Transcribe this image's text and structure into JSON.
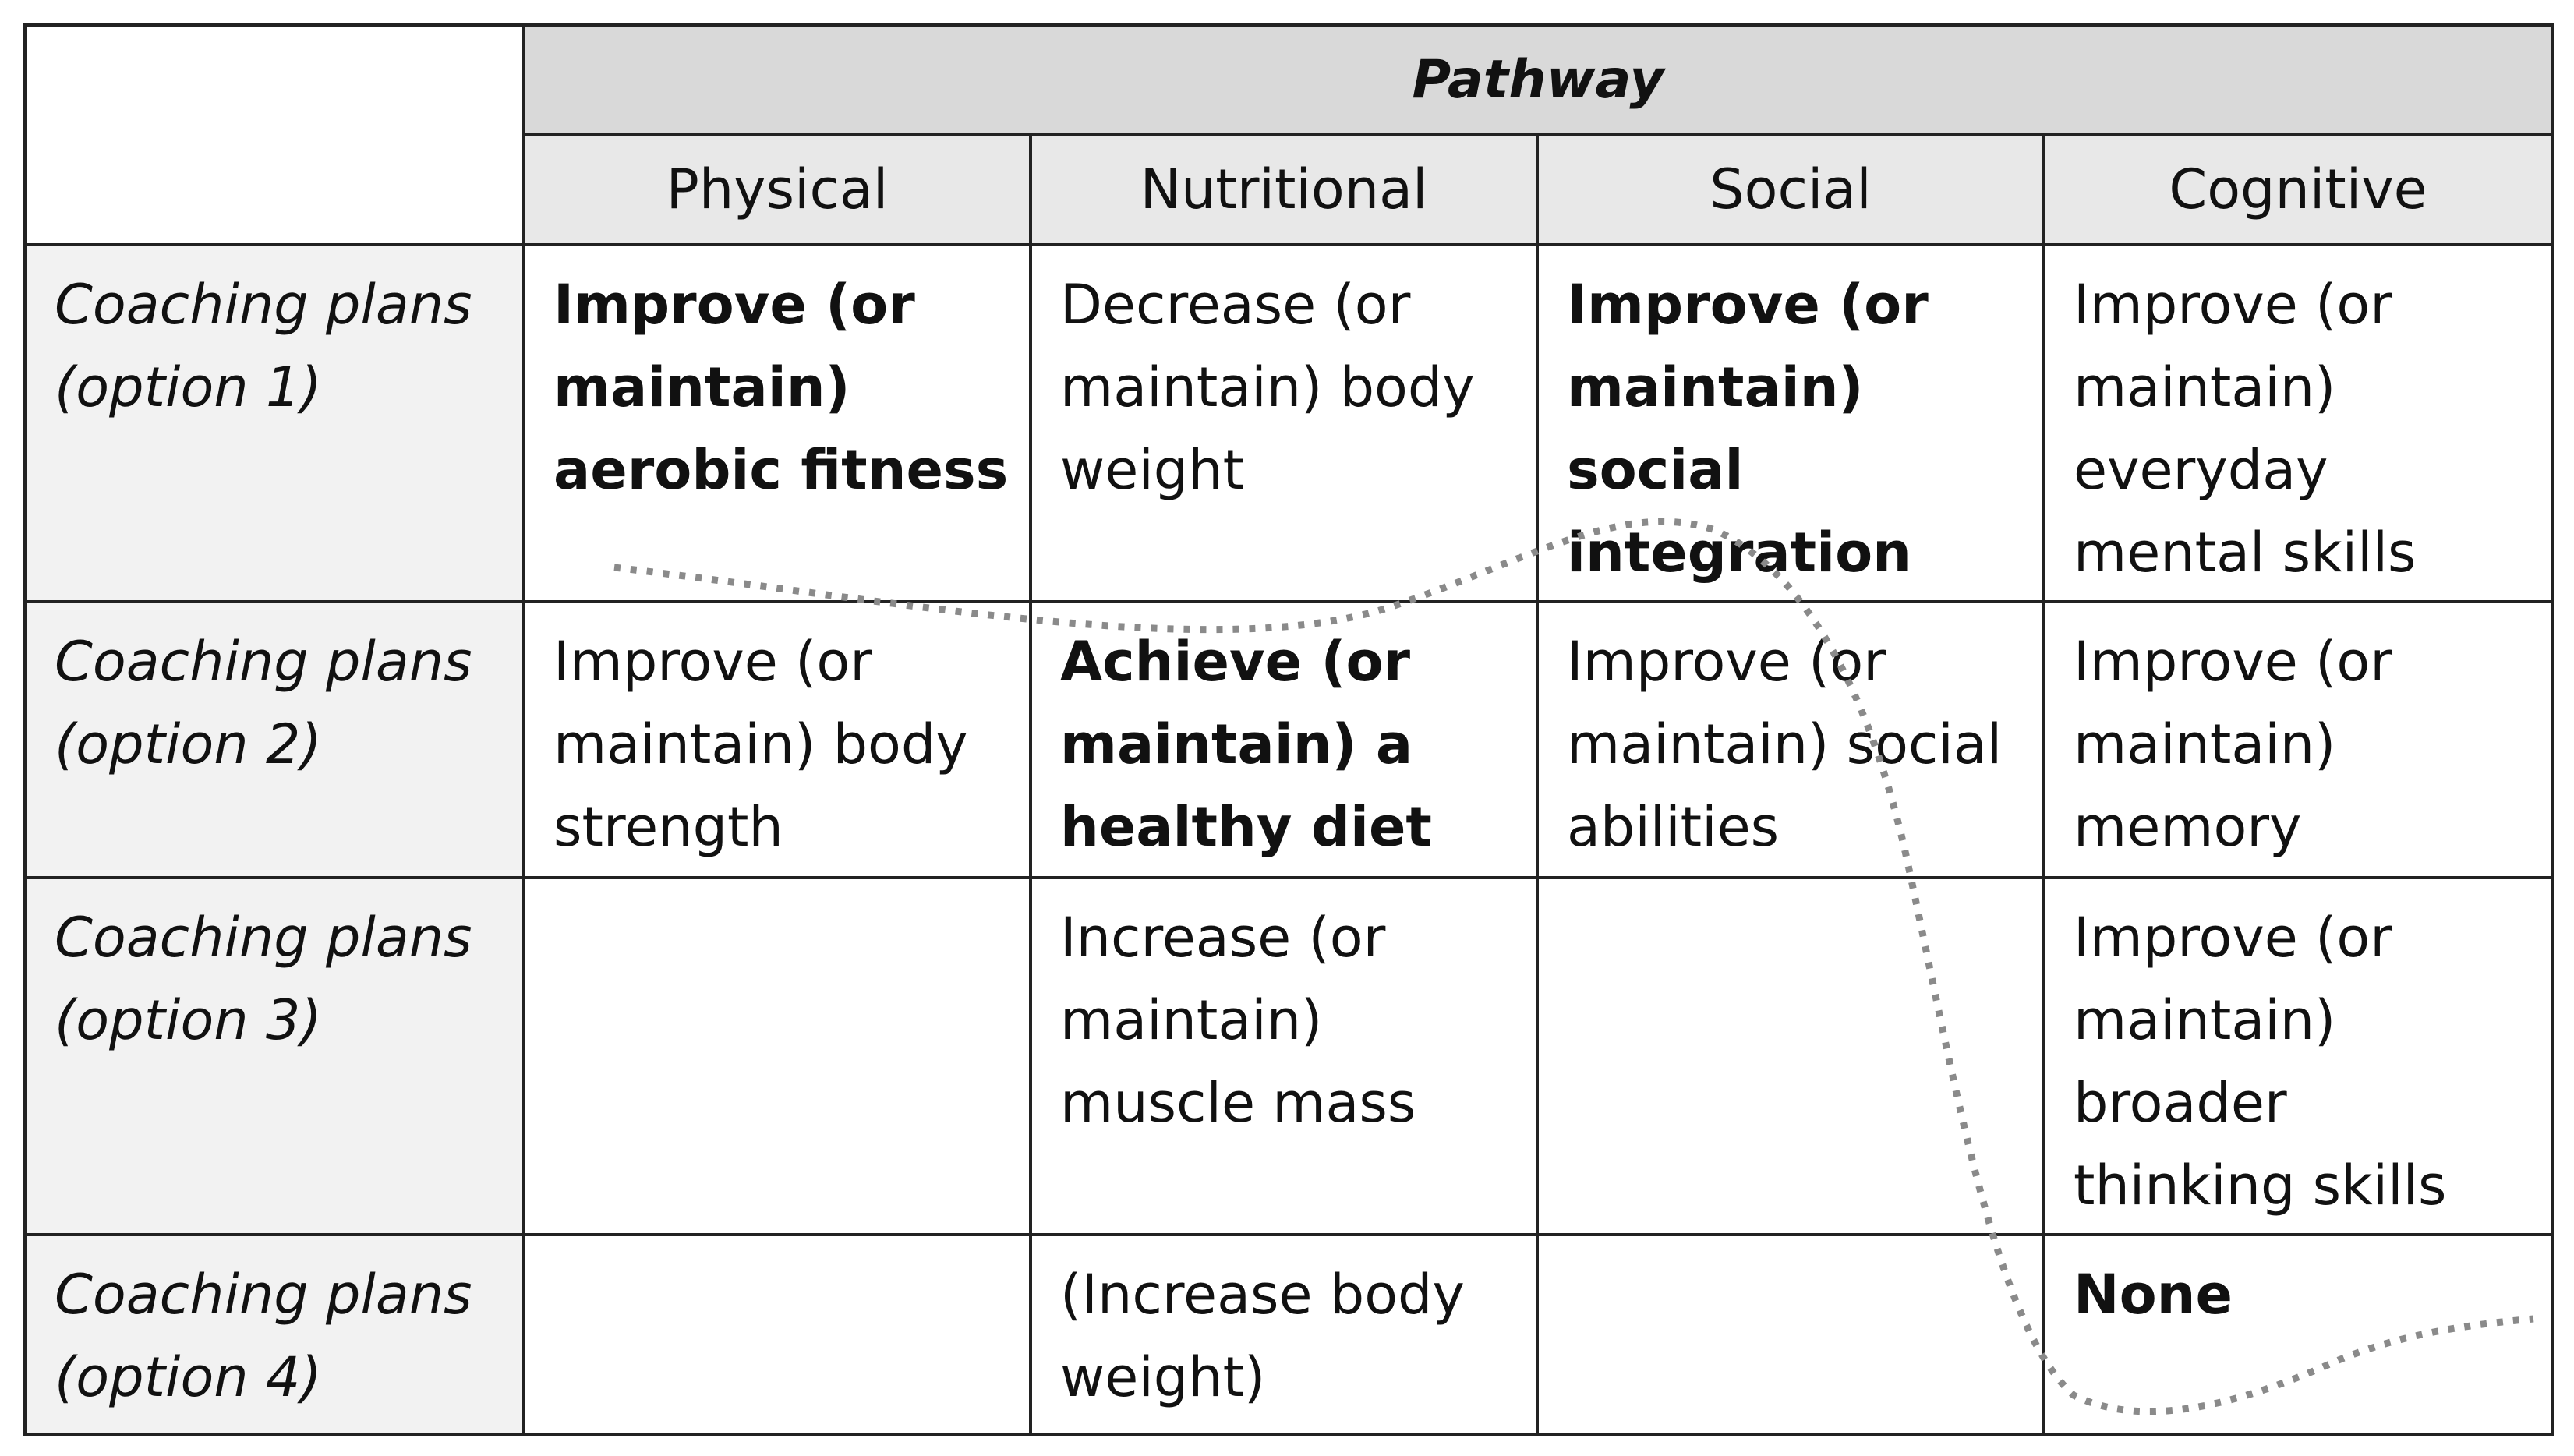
{
  "table": {
    "group_header": "Pathway",
    "columns": [
      "Physical",
      "Nutritional",
      "Social",
      "Cognitive"
    ],
    "rows": [
      {
        "label": "Coaching plans\n(option 1)",
        "cells": [
          {
            "text": "Improve (or\nmaintain)\naerobic fitness",
            "bold": true
          },
          {
            "text": "Decrease (or\nmaintain) body\nweight",
            "bold": false
          },
          {
            "text": "Improve (or\nmaintain) social\nintegration",
            "bold": true
          },
          {
            "text": "Improve (or\nmaintain)\neveryday\nmental skills",
            "bold": false
          }
        ]
      },
      {
        "label": "Coaching plans\n(option 2)",
        "cells": [
          {
            "text": "Improve (or\nmaintain) body\nstrength",
            "bold": false
          },
          {
            "text": "Achieve (or\nmaintain) a\nhealthy diet",
            "bold": true
          },
          {
            "text": "Improve (or\nmaintain) social\nabilities",
            "bold": false
          },
          {
            "text": "Improve (or\nmaintain)\nmemory",
            "bold": false
          }
        ]
      },
      {
        "label": "Coaching plans\n(option 3)",
        "cells": [
          {
            "text": "",
            "bold": false
          },
          {
            "text": "Increase (or\nmaintain)\nmuscle mass",
            "bold": false
          },
          {
            "text": "",
            "bold": false
          },
          {
            "text": "Improve (or\nmaintain)\nbroader\nthinking skills",
            "bold": false
          }
        ]
      },
      {
        "label": "Coaching plans\n(option 4)",
        "cells": [
          {
            "text": "",
            "bold": false
          },
          {
            "text": "(Increase body\nweight)",
            "bold": false
          },
          {
            "text": "",
            "bold": false
          },
          {
            "text": "None",
            "bold": true
          }
        ]
      }
    ]
  },
  "colors": {
    "group_header_bg": "#d9d9d9",
    "column_header_bg": "#e8e8e8",
    "row_header_bg": "#f2f2f2",
    "border": "#222222",
    "dotted_line": "#8a8a8a"
  }
}
